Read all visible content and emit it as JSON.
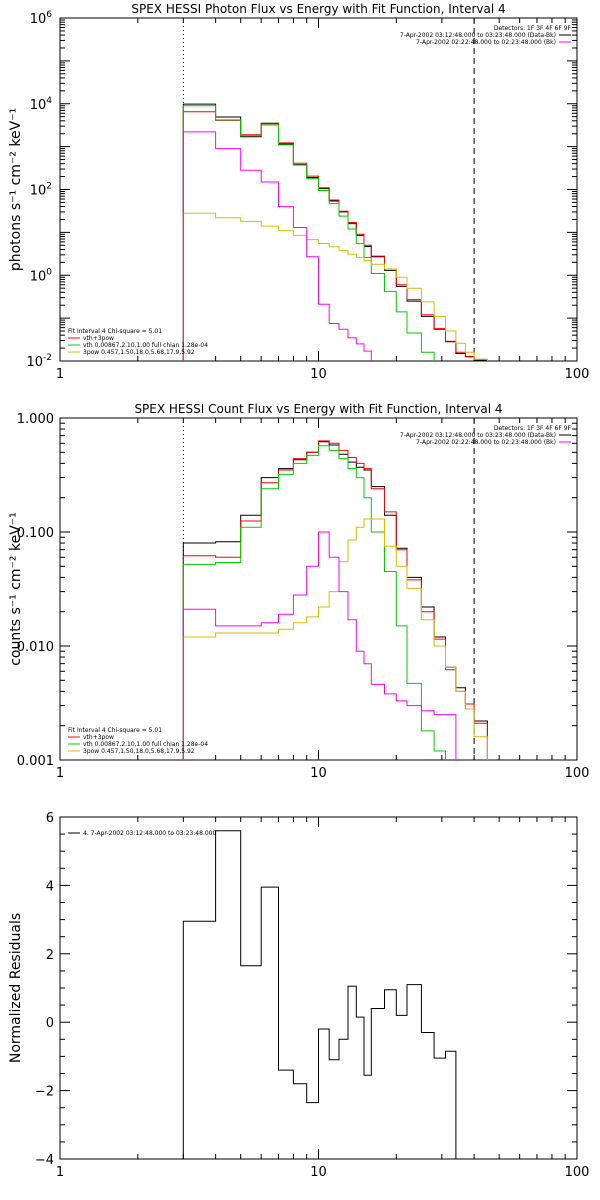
{
  "chart_data": [
    {
      "type": "line",
      "title": "SPEX HESSI Photon Flux vs Energy with Fit Function, Interval 4",
      "xlabel": "",
      "ylabel": "photons s⁻¹ cm⁻² keV⁻¹",
      "xscale": "log",
      "yscale": "log",
      "xlim": [
        1,
        100
      ],
      "ylim": [
        0.01,
        1000000
      ],
      "x_ticks": [
        {
          "v": 1,
          "label": "1"
        },
        {
          "v": 10,
          "label": "10"
        },
        {
          "v": 100,
          "label": "100"
        }
      ],
      "y_ticks": [
        {
          "v": 0.01,
          "base": "10",
          "exp": "-2"
        },
        {
          "v": 1,
          "base": "10",
          "exp": "0"
        },
        {
          "v": 100,
          "base": "10",
          "exp": "2"
        },
        {
          "v": 10000,
          "base": "10",
          "exp": "4"
        },
        {
          "v": 1000000,
          "base": "10",
          "exp": "6"
        }
      ],
      "legend_topright": [
        {
          "text": "Detectors: 1F 3F 4F 6F 9F",
          "color": null
        },
        {
          "text": "7-Apr-2002 03:12:48.000 to 03:23:48.000 (Data-Bk)",
          "color": "#000000"
        },
        {
          "text": "7-Apr-2002 02:22:48.000 to 02:23:48.000 (Bk)",
          "color": "#ff00ff"
        }
      ],
      "legend_bottomleft": [
        {
          "text": "Fit Interval 4   Chi-square = 5.01",
          "color": null
        },
        {
          "text": "vth+3pow",
          "color": "#ff0000"
        },
        {
          "text": "vth 0.00867,2.10,1.00  full chian 1.28e-04",
          "color": "#00cc00"
        },
        {
          "text": "3pow 0.457,1.50,18.0,5.68,17.9,5.92",
          "color": "#ddbb00"
        }
      ],
      "vlines": [
        {
          "x": 3,
          "style": "dotted"
        },
        {
          "x": 40,
          "style": "dashed"
        }
      ],
      "bin_edges": [
        3,
        4,
        5,
        6,
        7,
        8,
        9,
        10,
        11,
        12,
        13,
        14,
        15,
        16,
        18,
        20,
        22,
        25,
        28,
        31,
        34,
        37,
        40,
        45
      ],
      "series": [
        {
          "name": "Data-Bk",
          "color": "#000000",
          "values": [
            9800,
            4900,
            1700,
            3500,
            1150,
            380,
            190,
            105,
            54,
            30,
            16,
            8.5,
            4.7,
            2.7,
            1.3,
            0.55,
            0.25,
            0.11,
            0.055,
            0.028,
            0.015,
            0.0125,
            0.0105
          ]
        },
        {
          "name": "vth+3pow",
          "color": "#ff0000",
          "values": [
            6500,
            4100,
            1900,
            3400,
            1220,
            410,
            205,
            110,
            57,
            31,
            17,
            9,
            5,
            2.8,
            1.4,
            0.6,
            0.27,
            0.12,
            0.057,
            0.029,
            0.016,
            0.0128,
            0.0109
          ]
        },
        {
          "name": "vth",
          "color": "#00cc00",
          "values": [
            9000,
            4200,
            1800,
            3200,
            1100,
            370,
            180,
            95,
            47,
            24,
            12,
            5.5,
            2.6,
            1.1,
            0.42,
            0.14,
            0.045,
            0.016
          ]
        },
        {
          "name": "3pow",
          "color": "#ddbb00",
          "values": [
            28,
            22,
            18,
            14,
            11,
            8.5,
            6.8,
            5.5,
            4.6,
            3.8,
            3.1,
            2.6,
            2.2,
            1.8,
            1.4,
            0.9,
            0.5,
            0.24,
            0.11,
            0.05,
            0.026,
            0.016,
            0.011
          ]
        },
        {
          "name": "Bk",
          "color": "#ff00ff",
          "values": [
            2200,
            900,
            280,
            150,
            40,
            13,
            2.7,
            0.21,
            0.075,
            0.055,
            0.035,
            0.025,
            0.017
          ]
        }
      ]
    },
    {
      "type": "line",
      "title": "SPEX HESSI Count Flux vs Energy with Fit Function, Interval 4",
      "xlabel": "",
      "ylabel": "counts s⁻¹ cm⁻² keV⁻¹",
      "xscale": "log",
      "yscale": "log",
      "xlim": [
        1,
        100
      ],
      "ylim": [
        0.001,
        1.0
      ],
      "x_ticks": [
        {
          "v": 1,
          "label": "1"
        },
        {
          "v": 10,
          "label": "10"
        },
        {
          "v": 100,
          "label": "100"
        }
      ],
      "y_ticks": [
        {
          "v": 0.001,
          "label": "0.001"
        },
        {
          "v": 0.01,
          "label": "0.010"
        },
        {
          "v": 0.1,
          "label": "0.100"
        },
        {
          "v": 1,
          "label": "1.000"
        }
      ],
      "legend_topright": [
        {
          "text": "Detectors: 1F 3F 4F 6F 9F",
          "color": null
        },
        {
          "text": "7-Apr-2002 03:12:48.000 to 03:23:48.000 (Data-Bk)",
          "color": "#000000"
        },
        {
          "text": "7-Apr-2002 02:22:48.000 to 02:23:48.000 (Bk)",
          "color": "#ff00ff"
        }
      ],
      "legend_bottomleft": [
        {
          "text": "Fit Interval 4   Chi-square = 5.01",
          "color": null
        },
        {
          "text": "vth+3pow",
          "color": "#ff0000"
        },
        {
          "text": "vth 0.00867,2.10,1.00  full chian 1.28e-04",
          "color": "#00cc00"
        },
        {
          "text": "3pow 0.457,1.50,18.0,5.68,17.9,5.92",
          "color": "#ddbb00"
        }
      ],
      "vlines": [
        {
          "x": 3,
          "style": "dotted"
        },
        {
          "x": 40,
          "style": "dashed"
        }
      ],
      "bin_edges": [
        3,
        4,
        5,
        6,
        7,
        8,
        9,
        10,
        11,
        12,
        13,
        14,
        15,
        16,
        18,
        20,
        22,
        25,
        28,
        31,
        34,
        37,
        40,
        45
      ],
      "series": [
        {
          "name": "Data-Bk",
          "color": "#000000",
          "values": [
            0.08,
            0.082,
            0.14,
            0.3,
            0.36,
            0.43,
            0.5,
            0.62,
            0.58,
            0.48,
            0.41,
            0.37,
            0.35,
            0.25,
            0.14,
            0.072,
            0.04,
            0.022,
            0.012,
            0.0065,
            0.0043,
            0.0028,
            0.0022
          ]
        },
        {
          "name": "vth+3pow",
          "color": "#ff0000",
          "values": [
            0.062,
            0.06,
            0.125,
            0.27,
            0.35,
            0.44,
            0.5,
            0.63,
            0.6,
            0.52,
            0.45,
            0.4,
            0.36,
            0.24,
            0.15,
            0.07,
            0.038,
            0.02,
            0.0115,
            0.0062,
            0.004,
            0.0031,
            0.0021
          ]
        },
        {
          "name": "vth",
          "color": "#00cc00",
          "values": [
            0.052,
            0.054,
            0.11,
            0.24,
            0.32,
            0.4,
            0.47,
            0.57,
            0.52,
            0.44,
            0.36,
            0.3,
            0.2,
            0.1,
            0.045,
            0.015,
            0.0047,
            0.0018,
            0.0012
          ]
        },
        {
          "name": "3pow",
          "color": "#ddbb00",
          "values": [
            0.012,
            0.013,
            0.013,
            0.013,
            0.014,
            0.016,
            0.018,
            0.022,
            0.03,
            0.055,
            0.085,
            0.11,
            0.13,
            0.13,
            0.075,
            0.05,
            0.032,
            0.017,
            0.01,
            0.0065,
            0.004,
            0.0028,
            0.0016
          ]
        },
        {
          "name": "Bk",
          "color": "#ff00ff",
          "values": [
            0.021,
            0.015,
            0.015,
            0.016,
            0.019,
            0.028,
            0.05,
            0.1,
            0.06,
            0.03,
            0.017,
            0.009,
            0.007,
            0.0046,
            0.0038,
            0.0033,
            0.003,
            0.0027,
            0.0025,
            0.0025
          ]
        }
      ]
    },
    {
      "type": "line",
      "title": "",
      "xlabel": "",
      "ylabel": "Normalized Residuals",
      "xscale": "log",
      "yscale": "linear",
      "xlim": [
        1,
        100
      ],
      "ylim": [
        -4,
        6
      ],
      "x_ticks": [
        {
          "v": 1,
          "label": "1"
        },
        {
          "v": 10,
          "label": "10"
        },
        {
          "v": 100,
          "label": "100"
        }
      ],
      "y_ticks": [
        {
          "v": -4,
          "label": "−4"
        },
        {
          "v": -2,
          "label": "−2"
        },
        {
          "v": 0,
          "label": "0"
        },
        {
          "v": 2,
          "label": "2"
        },
        {
          "v": 4,
          "label": "4"
        },
        {
          "v": 6,
          "label": "6"
        }
      ],
      "legend_topleft": [
        {
          "text": "4.  7-Apr-2002 03:12:48.000 to 03:23:48.000",
          "color": "#000000"
        }
      ],
      "bin_edges": [
        3,
        4,
        5,
        6,
        7,
        8,
        9,
        10,
        11,
        12,
        13,
        14,
        15,
        16,
        18,
        20,
        22,
        25,
        28,
        31,
        34,
        37,
        40
      ],
      "series": [
        {
          "name": "4.  7-Apr-2002 03:12:48.000 to 03:23:48.000",
          "color": "#000000",
          "values": [
            2.95,
            5.6,
            1.65,
            3.95,
            -1.4,
            -1.8,
            -2.35,
            -0.2,
            -1.1,
            -0.5,
            1.05,
            0.15,
            -1.55,
            0.4,
            0.95,
            0.2,
            1.1,
            -0.3,
            -1.05,
            -0.85
          ]
        }
      ]
    }
  ]
}
